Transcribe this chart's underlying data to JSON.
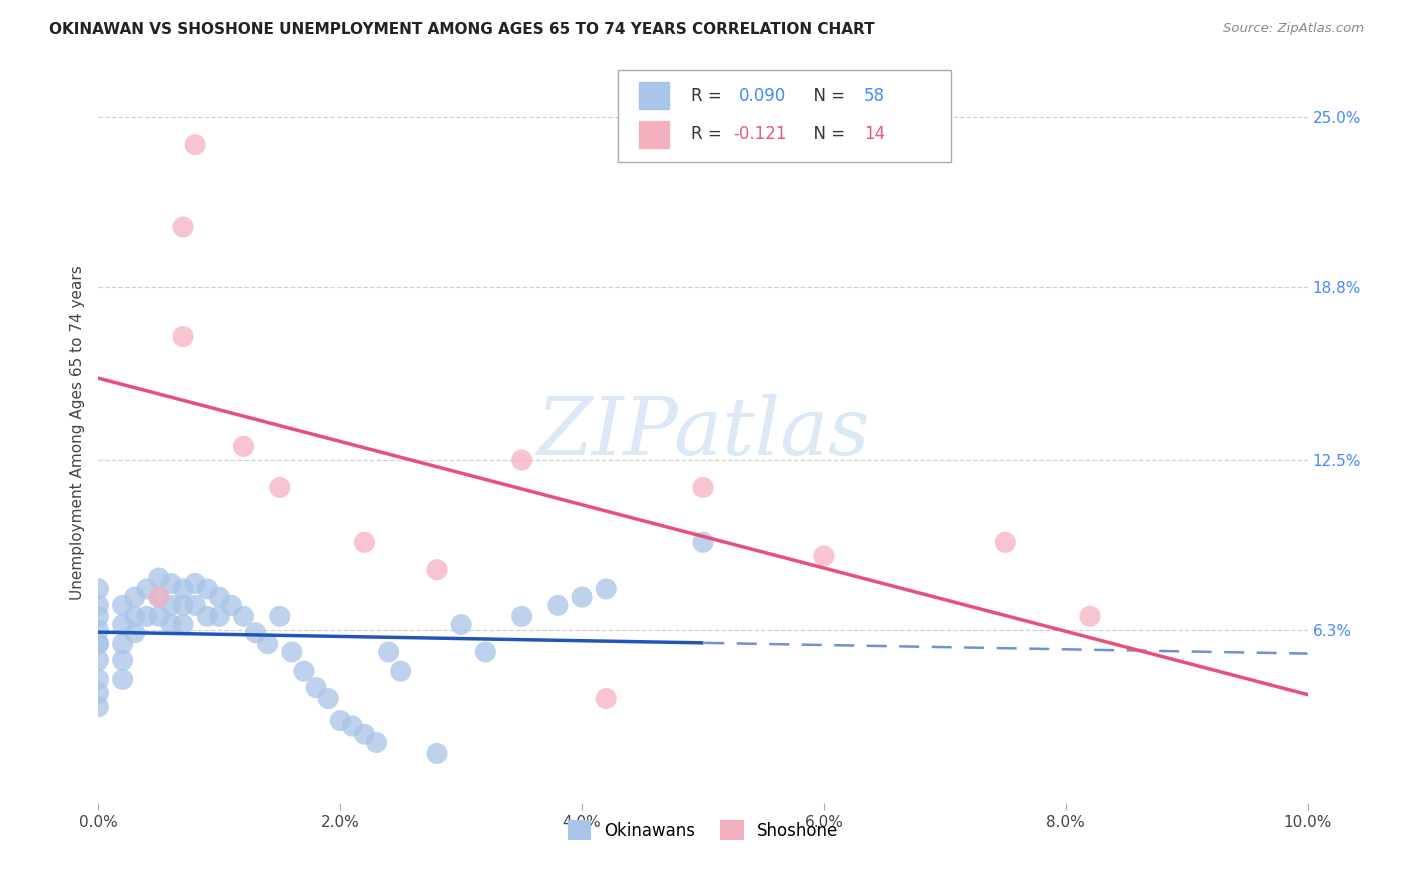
{
  "title": "OKINAWAN VS SHOSHONE UNEMPLOYMENT AMONG AGES 65 TO 74 YEARS CORRELATION CHART",
  "source": "Source: ZipAtlas.com",
  "ylabel": "Unemployment Among Ages 65 to 74 years",
  "xlim": [
    0,
    0.1
  ],
  "ylim": [
    0,
    0.27
  ],
  "xtick_labels": [
    "0.0%",
    "",
    "2.0%",
    "",
    "4.0%",
    "",
    "6.0%",
    "",
    "8.0%",
    "",
    "10.0%"
  ],
  "xtick_values": [
    0,
    0.01,
    0.02,
    0.03,
    0.04,
    0.05,
    0.06,
    0.07,
    0.08,
    0.09,
    0.1
  ],
  "xtick_display_labels": [
    "0.0%",
    "10.0%"
  ],
  "ytick_values": [
    0.063,
    0.125,
    0.188,
    0.25
  ],
  "ytick_labels": [
    "6.3%",
    "12.5%",
    "18.8%",
    "25.0%"
  ],
  "okinawan_color": "#a8c4e8",
  "okinawan_edge_color": "#7aaad4",
  "okinawan_line_color": "#2255bb",
  "shoshone_color": "#f5b0c0",
  "shoshone_edge_color": "#e888a0",
  "shoshone_line_color": "#e8507a",
  "ok_x": [
    0.0,
    0.0,
    0.0,
    0.0,
    0.0,
    0.0,
    0.0,
    0.0,
    0.0,
    0.0,
    0.002,
    0.002,
    0.002,
    0.002,
    0.002,
    0.003,
    0.003,
    0.003,
    0.004,
    0.004,
    0.005,
    0.005,
    0.005,
    0.006,
    0.006,
    0.006,
    0.007,
    0.007,
    0.007,
    0.008,
    0.008,
    0.009,
    0.009,
    0.01,
    0.01,
    0.011,
    0.012,
    0.013,
    0.014,
    0.015,
    0.016,
    0.017,
    0.018,
    0.019,
    0.02,
    0.021,
    0.022,
    0.023,
    0.024,
    0.025,
    0.028,
    0.03,
    0.032,
    0.035,
    0.038,
    0.04,
    0.042,
    0.05
  ],
  "ok_y": [
    0.04,
    0.045,
    0.052,
    0.058,
    0.063,
    0.068,
    0.072,
    0.078,
    0.058,
    0.035,
    0.072,
    0.065,
    0.058,
    0.052,
    0.045,
    0.075,
    0.068,
    0.062,
    0.078,
    0.068,
    0.082,
    0.075,
    0.068,
    0.08,
    0.072,
    0.065,
    0.078,
    0.072,
    0.065,
    0.08,
    0.072,
    0.078,
    0.068,
    0.075,
    0.068,
    0.072,
    0.068,
    0.062,
    0.058,
    0.068,
    0.055,
    0.048,
    0.042,
    0.038,
    0.03,
    0.028,
    0.025,
    0.022,
    0.055,
    0.048,
    0.018,
    0.065,
    0.055,
    0.068,
    0.072,
    0.075,
    0.078,
    0.095
  ],
  "sh_x": [
    0.007,
    0.007,
    0.012,
    0.015,
    0.022,
    0.028,
    0.035,
    0.05,
    0.06,
    0.075,
    0.082,
    0.005,
    0.042,
    0.008
  ],
  "sh_y": [
    0.21,
    0.17,
    0.13,
    0.115,
    0.095,
    0.085,
    0.125,
    0.115,
    0.09,
    0.095,
    0.068,
    0.075,
    0.038,
    0.24
  ],
  "ok_trendline_solid_end": 0.05,
  "background_color": "#ffffff",
  "grid_color": "#cccccc",
  "watermark_color": "#dce8f5"
}
